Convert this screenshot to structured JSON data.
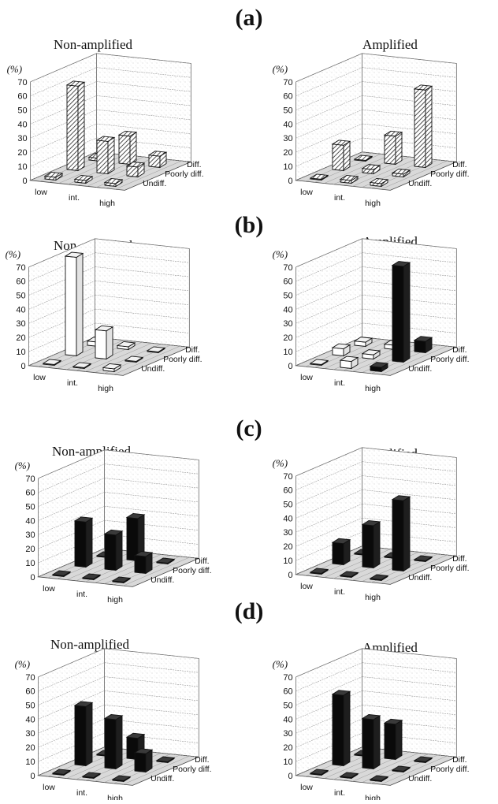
{
  "panels": [
    {
      "label": "(a)"
    },
    {
      "label": "(b)"
    },
    {
      "label": "(c)"
    },
    {
      "label": "(d)"
    }
  ],
  "chart_data": [
    {
      "type": "bar",
      "panel": "(a)",
      "title": "Non-amplified",
      "ylabel": "(%)",
      "yticks": [
        "70",
        "60",
        "50",
        "40",
        "30",
        "20",
        "10",
        "0"
      ],
      "ylim": [
        0,
        70
      ],
      "categories": [
        "low",
        "int.",
        "high"
      ],
      "series": [
        {
          "name": "Undiff.",
          "values": [
            2,
            2,
            2
          ]
        },
        {
          "name": "Poorly diff.",
          "values": [
            60,
            23,
            7
          ]
        },
        {
          "name": "Diff.",
          "values": [
            2,
            20,
            8
          ]
        }
      ],
      "fill": "hatched"
    },
    {
      "type": "bar",
      "panel": "(a)",
      "title": "Amplified",
      "ylabel": "(%)",
      "yticks": [
        "70",
        "60",
        "50",
        "40",
        "30",
        "20",
        "10",
        "0"
      ],
      "ylim": [
        0,
        70
      ],
      "categories": [
        "low",
        "int.",
        "high"
      ],
      "series": [
        {
          "name": "Undiff.",
          "values": [
            0,
            2,
            2
          ]
        },
        {
          "name": "Poorly diff.",
          "values": [
            18,
            3,
            2
          ]
        },
        {
          "name": "Diff.",
          "values": [
            0,
            20,
            55
          ]
        }
      ],
      "fill": "hatched"
    },
    {
      "type": "bar",
      "panel": "(b)",
      "title": "Non-amplified",
      "ylabel": "(%)",
      "yticks": [
        "70",
        "60",
        "50",
        "40",
        "30",
        "20",
        "10",
        "0"
      ],
      "ylim": [
        0,
        70
      ],
      "categories": [
        "low",
        "int.",
        "high"
      ],
      "series": [
        {
          "name": "Undiff.",
          "values": [
            0,
            0,
            2
          ]
        },
        {
          "name": "Poorly diff.",
          "values": [
            70,
            20,
            0
          ]
        },
        {
          "name": "Diff.",
          "values": [
            3,
            2,
            0
          ]
        }
      ],
      "fill": "white"
    },
    {
      "type": "bar",
      "panel": "(b)",
      "title": "Amplified",
      "ylabel": "(%)",
      "yticks": [
        "70",
        "60",
        "50",
        "40",
        "30",
        "20",
        "10",
        "0"
      ],
      "ylim": [
        0,
        70
      ],
      "categories": [
        "low",
        "int.",
        "high"
      ],
      "series": [
        {
          "name": "Undiff.",
          "values": [
            0,
            5,
            3
          ]
        },
        {
          "name": "Poorly diff.",
          "values": [
            5,
            3,
            68
          ]
        },
        {
          "name": "Diff.",
          "values": [
            3,
            3,
            8
          ]
        }
      ],
      "fill": "mixed"
    },
    {
      "type": "bar",
      "panel": "(c)",
      "title": "Non-amplified",
      "ylabel": "(%)",
      "yticks": [
        "70",
        "60",
        "50",
        "40",
        "30",
        "20",
        "10",
        "0"
      ],
      "ylim": [
        0,
        70
      ],
      "categories": [
        "low",
        "int.",
        "high"
      ],
      "series": [
        {
          "name": "Undiff.",
          "values": [
            0,
            0,
            0
          ]
        },
        {
          "name": "Poorly diff.",
          "values": [
            32,
            25,
            12
          ]
        },
        {
          "name": "Diff.",
          "values": [
            0,
            30,
            0
          ]
        }
      ],
      "fill": "black"
    },
    {
      "type": "bar",
      "panel": "(c)",
      "title": "Amplified",
      "ylabel": "(%)",
      "yticks": [
        "70",
        "60",
        "50",
        "40",
        "30",
        "20",
        "10",
        "0"
      ],
      "ylim": [
        0,
        70
      ],
      "categories": [
        "low",
        "int.",
        "high"
      ],
      "series": [
        {
          "name": "Undiff.",
          "values": [
            0,
            0,
            0
          ]
        },
        {
          "name": "Poorly diff.",
          "values": [
            15,
            30,
            50
          ]
        },
        {
          "name": "Diff.",
          "values": [
            0,
            0,
            0
          ]
        }
      ],
      "fill": "black"
    },
    {
      "type": "bar",
      "panel": "(d)",
      "title": "Non-amplified",
      "ylabel": "(%)",
      "yticks": [
        "70",
        "60",
        "50",
        "40",
        "30",
        "20",
        "10",
        "0"
      ],
      "ylim": [
        0,
        70
      ],
      "categories": [
        "low",
        "int.",
        "high"
      ],
      "series": [
        {
          "name": "Undiff.",
          "values": [
            0,
            0,
            0
          ]
        },
        {
          "name": "Poorly diff.",
          "values": [
            42,
            35,
            13
          ]
        },
        {
          "name": "Diff.",
          "values": [
            0,
            15,
            0
          ]
        }
      ],
      "fill": "black"
    },
    {
      "type": "bar",
      "panel": "(d)",
      "title": "Amplified",
      "ylabel": "(%)",
      "yticks": [
        "70",
        "60",
        "50",
        "40",
        "30",
        "20",
        "10",
        "0"
      ],
      "ylim": [
        0,
        70
      ],
      "categories": [
        "low",
        "int.",
        "high"
      ],
      "series": [
        {
          "name": "Undiff.",
          "values": [
            0,
            0,
            0
          ]
        },
        {
          "name": "Poorly diff.",
          "values": [
            50,
            35,
            0
          ]
        },
        {
          "name": "Diff.",
          "values": [
            0,
            25,
            0
          ]
        }
      ],
      "fill": "black"
    }
  ]
}
